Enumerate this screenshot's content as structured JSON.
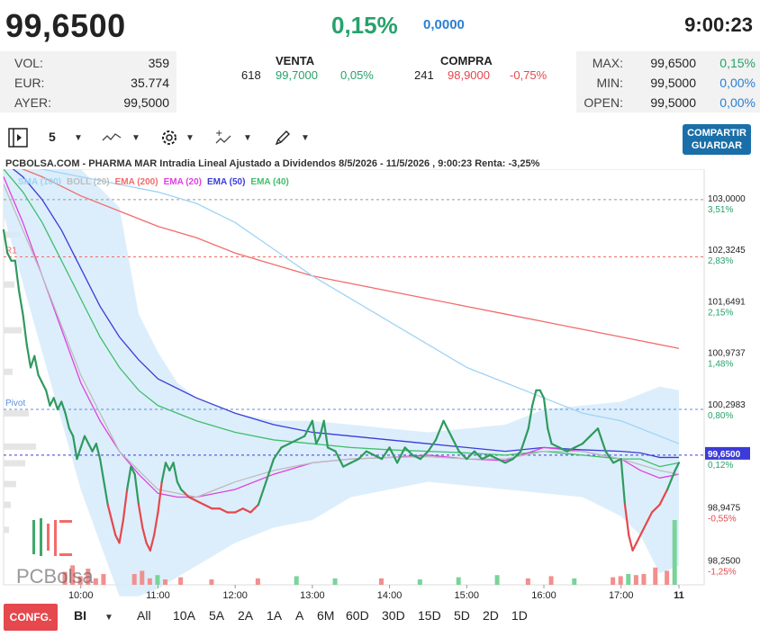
{
  "header": {
    "price": "99,6500",
    "change_pct": "0,15%",
    "change_abs": "0,0000",
    "time": "9:00:23"
  },
  "stats_left": [
    {
      "label": "VOL:",
      "value": "359"
    },
    {
      "label": "EUR:",
      "value": "35.774"
    },
    {
      "label": "AYER:",
      "value": "99,5000"
    }
  ],
  "sell": {
    "title": "VENTA",
    "qty": "618",
    "price": "99,7000",
    "pct": "0,05%"
  },
  "buy": {
    "title": "COMPRA",
    "qty": "241",
    "price": "98,9000",
    "pct": "-0,75%"
  },
  "stats_right": [
    {
      "label": "MAX:",
      "value": "99,6500",
      "pct": "0,15%"
    },
    {
      "label": "MIN:",
      "value": "99,5000",
      "pct": "0,00%"
    },
    {
      "label": "OPEN:",
      "value": "99,5000",
      "pct": "0,00%"
    }
  ],
  "toolbar": {
    "interval_value": "5",
    "share_label_1": "COMPARTIR",
    "share_label_2": "GUARDAR"
  },
  "chart_info": "PCBOLSA.COM - PHARMA MAR Intradia Lineal Ajustado a Dividendos 8/5/2026 - 11/5/2026 , 9:00:23 Renta: -3,25%",
  "legend": [
    {
      "label": "SMA (100)",
      "color": "#9fd3f5"
    },
    {
      "label": "BOLL (20)",
      "color": "#bdbdbd"
    },
    {
      "label": "EMA (200)",
      "color": "#f26b6b"
    },
    {
      "label": "EMA (20)",
      "color": "#e040e0"
    },
    {
      "label": "EMA (50)",
      "color": "#3b3bd9"
    },
    {
      "label": "EMA (40)",
      "color": "#3fbf6a"
    }
  ],
  "watermark": "PCBolsa",
  "chart_data": {
    "type": "line",
    "title": "PCBOLSA.COM - PHARMA MAR Intradia Lineal Ajustado a Dividendos 8/5/2026 - 11/5/2026 , 9:00:23 Renta: -3,25%",
    "xlabel": "",
    "ylabel": "",
    "ylim": [
      97.95,
      103.4
    ],
    "x_ticks": [
      "10:00",
      "11:00",
      "12:00",
      "13:00",
      "14:00",
      "15:00",
      "16:00",
      "17:00",
      "11"
    ],
    "y_ticks": [
      {
        "value": 103.0,
        "label": "103,0000",
        "pct": "3,51%"
      },
      {
        "value": 102.3245,
        "label": "102,3245",
        "pct": "2,83%"
      },
      {
        "value": 101.6491,
        "label": "101,6491",
        "pct": "2,15%"
      },
      {
        "value": 100.9737,
        "label": "100,9737",
        "pct": "1,48%"
      },
      {
        "value": 100.2983,
        "label": "100,2983",
        "pct": "0,80%"
      },
      {
        "value": 99.65,
        "label": "99,6500",
        "pct": "0,12%"
      },
      {
        "value": 98.9475,
        "label": "98,9475",
        "pct": "-0,55%"
      },
      {
        "value": 98.25,
        "label": "98,2500",
        "pct": "-1,25%"
      }
    ],
    "reference_lines": [
      {
        "name": "R1",
        "value": 102.25
      },
      {
        "name": "Pivot",
        "value": 100.25
      },
      {
        "name": "",
        "value": 103.0
      },
      {
        "name": "",
        "value": 99.65
      }
    ],
    "x_range": [
      9.0,
      17.75
    ],
    "price_series": {
      "name": "",
      "x": [
        9.0,
        9.05,
        9.1,
        9.15,
        9.2,
        9.25,
        9.3,
        9.35,
        9.4,
        9.45,
        9.5,
        9.55,
        9.6,
        9.65,
        9.7,
        9.75,
        9.8,
        9.85,
        9.9,
        9.95,
        10.0,
        10.05,
        10.1,
        10.15,
        10.2,
        10.25,
        10.3,
        10.35,
        10.4,
        10.45,
        10.5,
        10.55,
        10.6,
        10.65,
        10.7,
        10.75,
        10.8,
        10.85,
        10.9,
        10.95,
        11.0,
        11.05,
        11.1,
        11.15,
        11.2,
        11.25,
        11.3,
        11.35,
        11.4,
        11.5,
        11.6,
        11.7,
        11.8,
        11.9,
        12.0,
        12.1,
        12.2,
        12.3,
        12.4,
        12.5,
        12.6,
        12.7,
        12.8,
        12.9,
        13.0,
        13.05,
        13.1,
        13.15,
        13.2,
        13.3,
        13.4,
        13.5,
        13.6,
        13.7,
        13.8,
        13.9,
        14.0,
        14.1,
        14.2,
        14.3,
        14.4,
        14.5,
        14.6,
        14.7,
        14.8,
        14.9,
        15.0,
        15.1,
        15.2,
        15.3,
        15.4,
        15.5,
        15.6,
        15.7,
        15.8,
        15.85,
        15.9,
        15.95,
        16.0,
        16.05,
        16.1,
        16.2,
        16.3,
        16.4,
        16.5,
        16.6,
        16.7,
        16.8,
        16.9,
        17.0,
        17.05,
        17.1,
        17.15,
        17.2,
        17.3,
        17.4,
        17.5,
        17.6,
        17.7,
        17.75
      ],
      "values": [
        102.6,
        102.3,
        102.2,
        102.2,
        101.8,
        101.5,
        101.1,
        100.8,
        100.95,
        100.7,
        100.6,
        100.5,
        100.3,
        100.4,
        100.25,
        100.35,
        100.2,
        100.0,
        99.9,
        99.6,
        99.75,
        99.9,
        99.8,
        99.7,
        99.8,
        99.6,
        99.3,
        99.0,
        98.8,
        98.6,
        98.5,
        98.8,
        99.2,
        99.5,
        99.4,
        99.0,
        98.7,
        98.5,
        98.4,
        98.6,
        98.9,
        99.3,
        99.55,
        99.45,
        99.55,
        99.3,
        99.2,
        99.15,
        99.1,
        99.05,
        99.0,
        98.95,
        98.95,
        98.9,
        98.9,
        98.95,
        98.9,
        99.0,
        99.3,
        99.6,
        99.75,
        99.8,
        99.85,
        99.9,
        100.1,
        99.8,
        99.9,
        100.1,
        99.75,
        99.7,
        99.5,
        99.55,
        99.6,
        99.7,
        99.65,
        99.6,
        99.75,
        99.55,
        99.75,
        99.65,
        99.6,
        99.7,
        99.85,
        100.1,
        99.9,
        99.7,
        99.6,
        99.7,
        99.6,
        99.65,
        99.6,
        99.55,
        99.6,
        99.7,
        100.0,
        100.3,
        100.5,
        100.5,
        100.4,
        100.0,
        99.8,
        99.75,
        99.7,
        99.75,
        99.8,
        99.9,
        100.0,
        99.7,
        99.55,
        99.6,
        99.0,
        98.6,
        98.4,
        98.5,
        98.7,
        98.9,
        99.0,
        99.2,
        99.45,
        99.55
      ]
    },
    "series": [
      {
        "name": "EMA (200)",
        "x": [
          9.0,
          9.5,
          10.0,
          10.5,
          11.0,
          11.5,
          12.0,
          12.5,
          13.0,
          13.5,
          14.0,
          14.5,
          15.0,
          15.5,
          16.0,
          16.5,
          17.0,
          17.5,
          17.75
        ],
        "values": [
          103.5,
          103.3,
          103.05,
          102.85,
          102.65,
          102.5,
          102.3,
          102.15,
          102.0,
          101.9,
          101.8,
          101.7,
          101.6,
          101.5,
          101.4,
          101.3,
          101.2,
          101.1,
          101.05
        ]
      },
      {
        "name": "SMA (100)",
        "x": [
          9.0,
          9.5,
          10.0,
          10.5,
          11.0,
          11.5,
          12.0,
          12.5,
          13.0,
          13.5,
          14.0,
          14.5,
          15.0,
          15.5,
          16.0,
          16.5,
          17.0,
          17.5,
          17.75
        ],
        "values": [
          103.5,
          103.4,
          103.3,
          103.2,
          103.1,
          102.95,
          102.7,
          102.35,
          102.0,
          101.7,
          101.4,
          101.1,
          100.8,
          100.6,
          100.4,
          100.2,
          100.1,
          99.9,
          99.8
        ]
      },
      {
        "name": "EMA (50)",
        "x": [
          9.0,
          9.25,
          9.5,
          9.75,
          10.0,
          10.25,
          10.5,
          10.75,
          11.0,
          11.5,
          12.0,
          12.5,
          13.0,
          13.5,
          14.0,
          14.5,
          15.0,
          15.5,
          16.0,
          16.5,
          17.0,
          17.25,
          17.5,
          17.75
        ],
        "values": [
          103.5,
          103.3,
          103.0,
          102.6,
          102.1,
          101.6,
          101.2,
          100.9,
          100.65,
          100.4,
          100.2,
          100.05,
          99.95,
          99.9,
          99.85,
          99.8,
          99.75,
          99.7,
          99.75,
          99.72,
          99.7,
          99.68,
          99.62,
          99.62
        ]
      },
      {
        "name": "EMA (40)",
        "x": [
          9.0,
          9.25,
          9.5,
          9.75,
          10.0,
          10.25,
          10.5,
          10.75,
          11.0,
          11.5,
          12.0,
          12.5,
          13.0,
          13.5,
          14.0,
          14.5,
          15.0,
          15.5,
          16.0,
          16.5,
          17.0,
          17.25,
          17.5,
          17.75
        ],
        "values": [
          103.4,
          103.1,
          102.7,
          102.2,
          101.7,
          101.2,
          100.8,
          100.5,
          100.3,
          100.1,
          99.95,
          99.85,
          99.8,
          99.75,
          99.72,
          99.7,
          99.68,
          99.65,
          99.7,
          99.65,
          99.6,
          99.6,
          99.5,
          99.55
        ]
      },
      {
        "name": "EMA (20)",
        "x": [
          9.0,
          9.25,
          9.5,
          9.75,
          10.0,
          10.25,
          10.5,
          10.75,
          11.0,
          11.25,
          11.5,
          12.0,
          12.5,
          13.0,
          13.5,
          14.0,
          14.5,
          15.0,
          15.5,
          16.0,
          16.5,
          17.0,
          17.25,
          17.5,
          17.75
        ],
        "values": [
          103.3,
          102.7,
          102.0,
          101.3,
          100.6,
          100.1,
          99.7,
          99.4,
          99.15,
          99.1,
          99.1,
          99.2,
          99.4,
          99.55,
          99.6,
          99.62,
          99.65,
          99.6,
          99.58,
          99.75,
          99.7,
          99.6,
          99.45,
          99.35,
          99.4
        ]
      },
      {
        "name": "BOLL (20)",
        "x": [
          9.0,
          9.5,
          10.0,
          10.5,
          11.0,
          11.5,
          12.0,
          12.5,
          13.0,
          13.5,
          14.0,
          14.5,
          15.0,
          15.5,
          16.0,
          16.5,
          17.0,
          17.5,
          17.75
        ],
        "values": [
          103.2,
          102.0,
          100.7,
          99.7,
          99.2,
          99.1,
          99.3,
          99.45,
          99.55,
          99.6,
          99.62,
          99.63,
          99.6,
          99.6,
          99.7,
          99.7,
          99.6,
          99.45,
          99.4
        ]
      }
    ],
    "bollinger_band": {
      "name": "BOLL (20)",
      "x": [
        9.0,
        9.5,
        10.0,
        10.5,
        10.75,
        11.0,
        11.25,
        11.5,
        12.0,
        12.5,
        13.0,
        13.5,
        14.0,
        14.5,
        15.0,
        15.5,
        16.0,
        16.5,
        17.0,
        17.25,
        17.5,
        17.75
      ],
      "upper": [
        103.5,
        103.5,
        103.4,
        102.9,
        101.5,
        101.0,
        100.6,
        100.4,
        100.2,
        100.1,
        100.1,
        100.05,
        100.0,
        99.95,
        100.0,
        100.05,
        100.25,
        100.3,
        100.35,
        100.45,
        100.55,
        100.5
      ],
      "lower": [
        102.8,
        101.0,
        99.2,
        97.8,
        97.8,
        97.9,
        98.05,
        98.2,
        98.5,
        98.7,
        98.8,
        99.1,
        99.2,
        99.3,
        99.25,
        99.2,
        99.15,
        99.1,
        98.85,
        98.6,
        98.1,
        98.2
      ]
    },
    "volume": {
      "x": [
        9.8,
        9.9,
        10.0,
        10.1,
        10.2,
        10.3,
        10.7,
        10.8,
        10.9,
        11.0,
        11.1,
        11.3,
        11.7,
        12.3,
        12.8,
        13.3,
        13.9,
        14.4,
        14.9,
        15.4,
        15.8,
        16.1,
        16.4,
        16.9,
        17.0,
        17.1,
        17.2,
        17.3,
        17.45,
        17.6,
        17.7
      ],
      "values": [
        1.2,
        1.8,
        0.8,
        1.5,
        0.6,
        1.0,
        1.0,
        1.3,
        0.6,
        0.9,
        0.5,
        0.7,
        0.5,
        0.6,
        0.8,
        0.6,
        0.6,
        0.5,
        0.7,
        0.9,
        0.6,
        0.8,
        0.6,
        0.7,
        0.8,
        1.0,
        0.9,
        1.0,
        1.6,
        1.3,
        6.0
      ],
      "colors": [
        "r",
        "r",
        "r",
        "r",
        "r",
        "r",
        "r",
        "r",
        "r",
        "g",
        "r",
        "r",
        "r",
        "r",
        "g",
        "g",
        "r",
        "g",
        "g",
        "g",
        "r",
        "r",
        "g",
        "r",
        "r",
        "g",
        "r",
        "r",
        "r",
        "r",
        "g"
      ]
    }
  }
}
